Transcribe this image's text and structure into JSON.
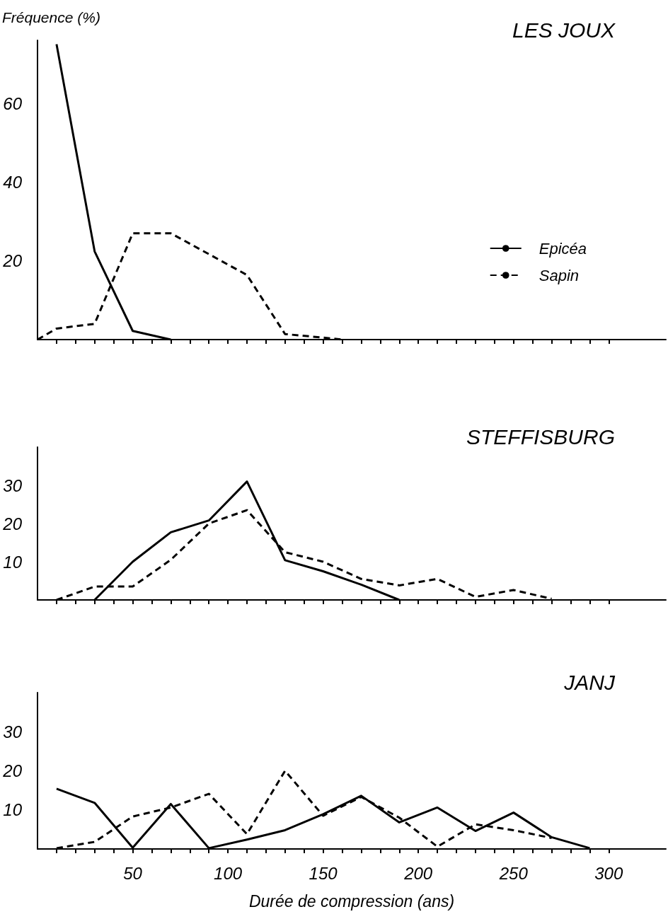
{
  "chart_data": [
    {
      "type": "line",
      "title": "LES JOUX",
      "ylabel": "Fréquence (%)",
      "legend": "right",
      "marker": "none",
      "tick_labels": "y",
      "xlim": [
        0,
        330
      ],
      "xticks": [
        {
          "value": 10,
          "label": null
        },
        {
          "value": 20,
          "label": null
        },
        {
          "value": 30,
          "label": null
        },
        {
          "value": 40,
          "label": null
        },
        50,
        {
          "value": 60,
          "label": null
        },
        {
          "value": 70,
          "label": null
        },
        {
          "value": 80,
          "label": null
        },
        {
          "value": 90,
          "label": null
        },
        100,
        {
          "value": 110,
          "label": null
        },
        {
          "value": 120,
          "label": null
        },
        {
          "value": 130,
          "label": null
        },
        {
          "value": 140,
          "label": null
        },
        150,
        {
          "value": 160,
          "label": null
        },
        {
          "value": 170,
          "label": null
        },
        {
          "value": 180,
          "label": null
        },
        {
          "value": 190,
          "label": null
        },
        200,
        {
          "value": 210,
          "label": null
        },
        {
          "value": 220,
          "label": null
        },
        {
          "value": 230,
          "label": null
        },
        {
          "value": 240,
          "label": null
        },
        250,
        {
          "value": 260,
          "label": null
        },
        {
          "value": 270,
          "label": null
        },
        {
          "value": 280,
          "label": null
        },
        {
          "value": 290,
          "label": null
        },
        300
      ],
      "ylim": [
        0,
        76
      ],
      "yticks": [
        20,
        40,
        60
      ],
      "series": [
        {
          "name": "Epicéa",
          "color": "#000000",
          "line_style": "solid",
          "x": [
            10,
            30,
            50,
            70
          ],
          "values": [
            75,
            22.4,
            2.2,
            0
          ]
        },
        {
          "name": "Sapin",
          "color": "#000000",
          "line_style": "dashed",
          "x": [
            0,
            10,
            30,
            50,
            70,
            110,
            130,
            150,
            160
          ],
          "values": [
            0,
            2.8,
            4,
            27,
            27,
            16.4,
            1.4,
            0.5,
            0
          ]
        }
      ]
    },
    {
      "type": "line",
      "title": "STEFFISBURG",
      "marker": "none",
      "tick_labels": "y",
      "xlim": [
        0,
        330
      ],
      "xticks": [
        {
          "value": 10,
          "label": null
        },
        {
          "value": 20,
          "label": null
        },
        {
          "value": 30,
          "label": null
        },
        {
          "value": 40,
          "label": null
        },
        50,
        {
          "value": 60,
          "label": null
        },
        {
          "value": 70,
          "label": null
        },
        {
          "value": 80,
          "label": null
        },
        {
          "value": 90,
          "label": null
        },
        100,
        {
          "value": 110,
          "label": null
        },
        {
          "value": 120,
          "label": null
        },
        {
          "value": 130,
          "label": null
        },
        {
          "value": 140,
          "label": null
        },
        150,
        {
          "value": 160,
          "label": null
        },
        {
          "value": 170,
          "label": null
        },
        {
          "value": 180,
          "label": null
        },
        {
          "value": 190,
          "label": null
        },
        200,
        {
          "value": 210,
          "label": null
        },
        {
          "value": 220,
          "label": null
        },
        {
          "value": 230,
          "label": null
        },
        {
          "value": 240,
          "label": null
        },
        250,
        {
          "value": 260,
          "label": null
        },
        {
          "value": 270,
          "label": null
        },
        {
          "value": 280,
          "label": null
        },
        {
          "value": 290,
          "label": null
        },
        300
      ],
      "ylim": [
        0,
        40
      ],
      "yticks": [
        10,
        20,
        30
      ],
      "series": [
        {
          "color": "#000000",
          "line_style": "solid",
          "x": [
            30,
            50,
            70,
            90,
            110,
            130,
            150,
            170,
            190
          ],
          "values": [
            0,
            10,
            17.7,
            20.8,
            31,
            10.4,
            7.5,
            4,
            0
          ]
        },
        {
          "color": "#000000",
          "line_style": "dashed",
          "x": [
            10,
            30,
            50,
            70,
            90,
            110,
            130,
            150,
            170,
            190,
            210,
            230,
            250,
            270
          ],
          "values": [
            0,
            3.5,
            3.5,
            10.5,
            20,
            23.5,
            12.5,
            10,
            5.5,
            3.8,
            5.5,
            0.8,
            2.6,
            0.3
          ]
        }
      ]
    },
    {
      "type": "line",
      "title": "JANJ",
      "xlabel": "Durée de compression (ans)",
      "marker": "none",
      "xlim": [
        0,
        330
      ],
      "xticks": [
        {
          "value": 10,
          "label": null
        },
        {
          "value": 20,
          "label": null
        },
        {
          "value": 30,
          "label": null
        },
        {
          "value": 40,
          "label": null
        },
        50,
        {
          "value": 60,
          "label": null
        },
        {
          "value": 70,
          "label": null
        },
        {
          "value": 80,
          "label": null
        },
        {
          "value": 90,
          "label": null
        },
        100,
        {
          "value": 110,
          "label": null
        },
        {
          "value": 120,
          "label": null
        },
        {
          "value": 130,
          "label": null
        },
        {
          "value": 140,
          "label": null
        },
        150,
        {
          "value": 160,
          "label": null
        },
        {
          "value": 170,
          "label": null
        },
        {
          "value": 180,
          "label": null
        },
        {
          "value": 190,
          "label": null
        },
        200,
        {
          "value": 210,
          "label": null
        },
        {
          "value": 220,
          "label": null
        },
        {
          "value": 230,
          "label": null
        },
        {
          "value": 240,
          "label": null
        },
        250,
        {
          "value": 260,
          "label": null
        },
        {
          "value": 270,
          "label": null
        },
        {
          "value": 280,
          "label": null
        },
        {
          "value": 290,
          "label": null
        },
        300
      ],
      "ylim": [
        0,
        40
      ],
      "yticks": [
        10,
        20,
        30
      ],
      "series": [
        {
          "color": "#000000",
          "line_style": "solid",
          "x": [
            10,
            30,
            50,
            70,
            90,
            110,
            130,
            150,
            170,
            190,
            210,
            230,
            250,
            270,
            290
          ],
          "values": [
            15.4,
            11.8,
            0.3,
            11.5,
            0.2,
            2.4,
            4.8,
            8.9,
            13.6,
            6.8,
            10.6,
            4.6,
            9.3,
            3,
            0.2
          ]
        },
        {
          "color": "#000000",
          "line_style": "dashed",
          "x": [
            10,
            30,
            50,
            70,
            90,
            110,
            130,
            150,
            170,
            190,
            210,
            230,
            250,
            270
          ],
          "values": [
            0.2,
            1.8,
            8.3,
            10.6,
            14.1,
            3.8,
            20,
            8.5,
            13.3,
            8,
            0.6,
            6.3,
            4.8,
            2.8
          ]
        }
      ]
    }
  ]
}
